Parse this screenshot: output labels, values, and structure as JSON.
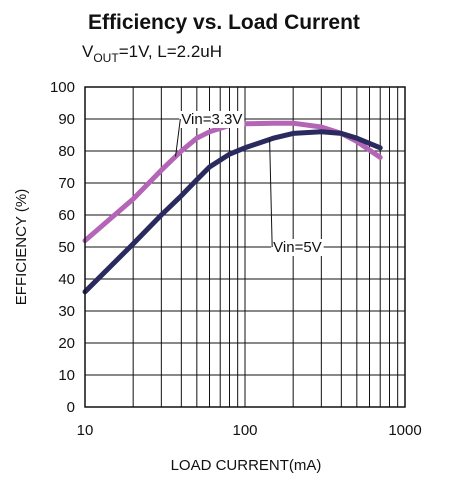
{
  "chart_data": {
    "type": "line",
    "title": "Efficiency vs. Load Current",
    "subtitle": {
      "v_main": "V",
      "v_sub": "OUT",
      "rest": "=1V, L=2.2uH"
    },
    "xlabel": "LOAD CURRENT(mA)",
    "ylabel": "EFFICIENCY (%)",
    "x_scale": "log",
    "xlim": [
      10,
      1000
    ],
    "ylim": [
      0,
      100
    ],
    "x_ticks": [
      10,
      100,
      1000
    ],
    "x_tick_labels": [
      "10",
      "100",
      "1000"
    ],
    "y_ticks": [
      0,
      10,
      20,
      30,
      40,
      50,
      60,
      70,
      80,
      90,
      100
    ],
    "y_tick_labels": [
      "0",
      "10",
      "20",
      "30",
      "40",
      "50",
      "60",
      "70",
      "80",
      "90",
      "100"
    ],
    "grid": true,
    "series": [
      {
        "name": "Vin=3.3V",
        "color": "#b565b5",
        "x": [
          10,
          20,
          30,
          40,
          50,
          60,
          80,
          100,
          150,
          200,
          300,
          400,
          500,
          700
        ],
        "y": [
          52,
          65,
          74,
          80,
          84,
          86,
          88,
          88.5,
          88.7,
          88.7,
          87.5,
          85.5,
          83,
          78
        ]
      },
      {
        "name": "Vin=5V",
        "color": "#2a2a5e",
        "x": [
          10,
          20,
          30,
          40,
          50,
          60,
          80,
          100,
          150,
          200,
          300,
          400,
          500,
          700
        ],
        "y": [
          36,
          51,
          60,
          66,
          71,
          75,
          79,
          81,
          84,
          85.5,
          86,
          85.5,
          84,
          81
        ]
      }
    ],
    "annotations": [
      {
        "text": "Vin=3.3V",
        "series": 0,
        "x": 40,
        "y": 90
      },
      {
        "text": "Vin=5V",
        "series": 1,
        "x": 150,
        "y": 50
      }
    ]
  }
}
